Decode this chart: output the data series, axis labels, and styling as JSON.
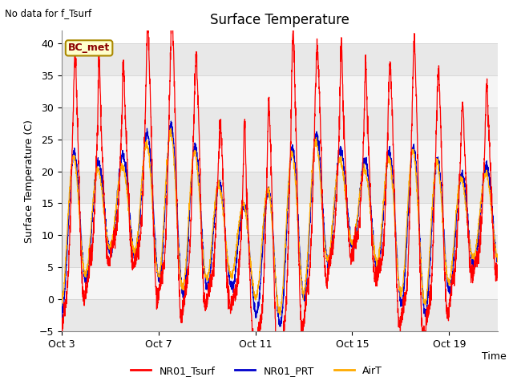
{
  "title": "Surface Temperature",
  "topleft_note": "No data for f_Tsurf",
  "ylabel": "Surface Temperature (C)",
  "xlabel": "Time",
  "ylim": [
    -5,
    42
  ],
  "yticks": [
    -5,
    0,
    5,
    10,
    15,
    20,
    25,
    30,
    35,
    40
  ],
  "xtick_labels": [
    "Oct 3",
    "Oct 7",
    "Oct 11",
    "Oct 15",
    "Oct 19"
  ],
  "xtick_positions": [
    0,
    4,
    8,
    12,
    16
  ],
  "legend_labels": [
    "NR01_Tsurf",
    "NR01_PRT",
    "AirT"
  ],
  "line_colors": [
    "#ff0000",
    "#0000cc",
    "#ffaa00"
  ],
  "bc_met_label": "BC_met",
  "bc_met_bg": "#ffffcc",
  "bc_met_border": "#aa8800",
  "n_points": 3000,
  "n_days": 18,
  "seed": 42,
  "band_colors": [
    "#ffffff",
    "#e0e0e0"
  ],
  "fig_bg": "#ffffff"
}
